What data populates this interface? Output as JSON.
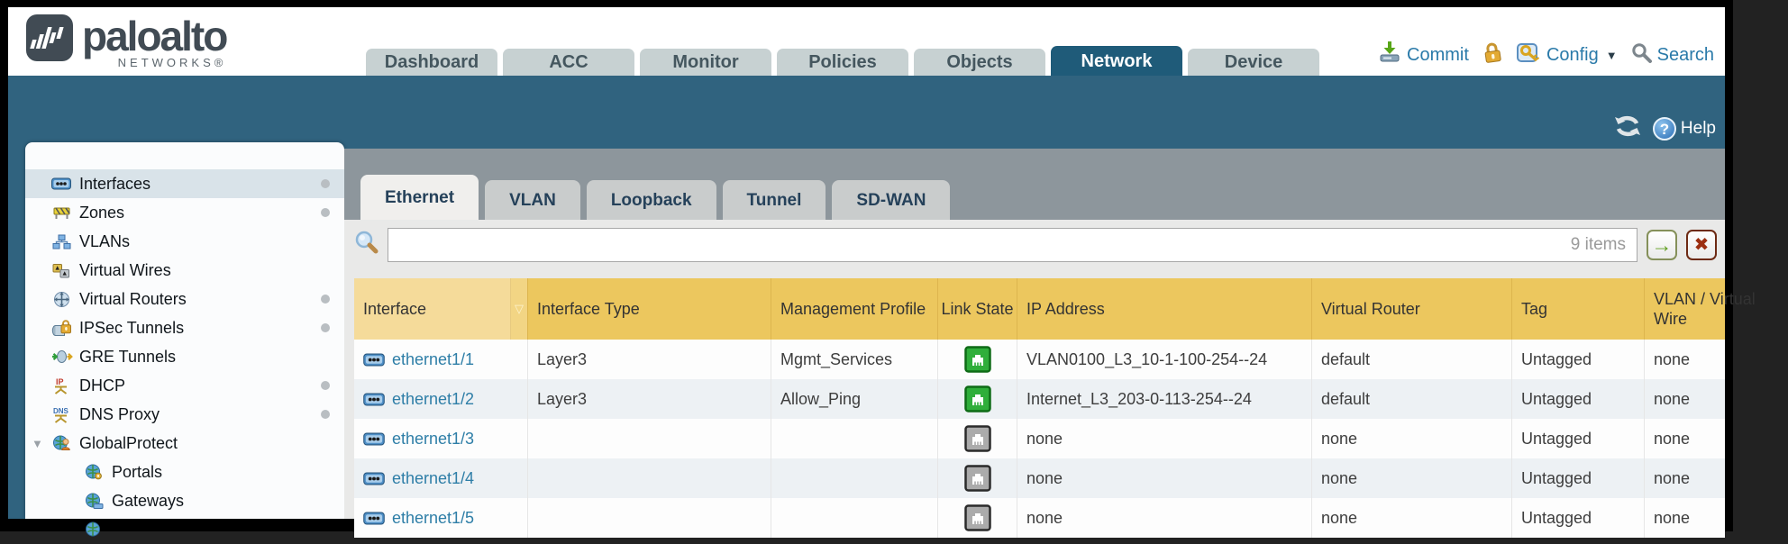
{
  "brand": {
    "name": "paloalto",
    "subname": "NETWORKS®"
  },
  "colors": {
    "accent_teal": "#30637f",
    "active_tab": "#1f5b79",
    "header_gold": "#ecc75e",
    "link_blue": "#2e7ea7",
    "status_up_green": "#2fae3a",
    "status_up_border": "#0e6b16",
    "status_down_gray": "#ababab",
    "status_down_border": "#2a2a2a"
  },
  "nav": {
    "tabs": [
      {
        "label": "Dashboard",
        "active": false
      },
      {
        "label": "ACC",
        "active": false
      },
      {
        "label": "Monitor",
        "active": false
      },
      {
        "label": "Policies",
        "active": false
      },
      {
        "label": "Objects",
        "active": false
      },
      {
        "label": "Network",
        "active": true
      },
      {
        "label": "Device",
        "active": false
      }
    ],
    "actions": [
      {
        "id": "commit",
        "label": "Commit",
        "icon": "commit-icon",
        "caret": false
      },
      {
        "id": "lock",
        "label": "",
        "icon": "lock-icon",
        "caret": false
      },
      {
        "id": "config",
        "label": "Config",
        "icon": "config-icon",
        "caret": true
      },
      {
        "id": "search",
        "label": "Search",
        "icon": "search-icon",
        "caret": false
      }
    ]
  },
  "statusbar": {
    "help_label": "Help"
  },
  "sidebar": {
    "items": [
      {
        "label": "Interfaces",
        "icon": "interfaces-icon",
        "selected": true,
        "dot": true,
        "expander": false,
        "child": false
      },
      {
        "label": "Zones",
        "icon": "zones-icon",
        "selected": false,
        "dot": true,
        "expander": false,
        "child": false
      },
      {
        "label": "VLANs",
        "icon": "vlans-icon",
        "selected": false,
        "dot": false,
        "expander": false,
        "child": false
      },
      {
        "label": "Virtual Wires",
        "icon": "virtual-wires-icon",
        "selected": false,
        "dot": false,
        "expander": false,
        "child": false
      },
      {
        "label": "Virtual Routers",
        "icon": "virtual-routers-icon",
        "selected": false,
        "dot": true,
        "expander": false,
        "child": false
      },
      {
        "label": "IPSec Tunnels",
        "icon": "ipsec-tunnels-icon",
        "selected": false,
        "dot": true,
        "expander": false,
        "child": false
      },
      {
        "label": "GRE Tunnels",
        "icon": "gre-tunnels-icon",
        "selected": false,
        "dot": false,
        "expander": false,
        "child": false
      },
      {
        "label": "DHCP",
        "icon": "dhcp-icon",
        "selected": false,
        "dot": true,
        "expander": false,
        "child": false
      },
      {
        "label": "DNS Proxy",
        "icon": "dns-proxy-icon",
        "selected": false,
        "dot": true,
        "expander": false,
        "child": false
      },
      {
        "label": "GlobalProtect",
        "icon": "globalprotect-icon",
        "selected": false,
        "dot": false,
        "expander": true,
        "child": false
      },
      {
        "label": "Portals",
        "icon": "portals-icon",
        "selected": false,
        "dot": false,
        "expander": false,
        "child": true
      },
      {
        "label": "Gateways",
        "icon": "gateways-icon",
        "selected": false,
        "dot": false,
        "expander": false,
        "child": true
      },
      {
        "label": "",
        "icon": "globe-icon",
        "selected": false,
        "dot": false,
        "expander": false,
        "child": true
      }
    ]
  },
  "content": {
    "tabs": [
      {
        "label": "Ethernet",
        "active": true
      },
      {
        "label": "VLAN",
        "active": false
      },
      {
        "label": "Loopback",
        "active": false
      },
      {
        "label": "Tunnel",
        "active": false
      },
      {
        "label": "SD-WAN",
        "active": false
      }
    ],
    "search": {
      "value": "",
      "items_count": "9 items"
    },
    "table": {
      "columns": [
        {
          "id": "interface",
          "label": "Interface",
          "sortable": true
        },
        {
          "id": "type",
          "label": "Interface Type"
        },
        {
          "id": "mgmt",
          "label": "Management Profile"
        },
        {
          "id": "link",
          "label": "Link State"
        },
        {
          "id": "ip",
          "label": "IP Address"
        },
        {
          "id": "vr",
          "label": "Virtual Router"
        },
        {
          "id": "tag",
          "label": "Tag"
        },
        {
          "id": "vlan",
          "label": "VLAN / Virtual Wire"
        }
      ],
      "rows": [
        {
          "interface": "ethernet1/1",
          "type": "Layer3",
          "mgmt": "Mgmt_Services",
          "link": "up",
          "ip": "VLAN0100_L3_10-1-100-254--24",
          "vr": "default",
          "tag": "Untagged",
          "vlan": "none"
        },
        {
          "interface": "ethernet1/2",
          "type": "Layer3",
          "mgmt": "Allow_Ping",
          "link": "up",
          "ip": "Internet_L3_203-0-113-254--24",
          "vr": "default",
          "tag": "Untagged",
          "vlan": "none"
        },
        {
          "interface": "ethernet1/3",
          "type": "",
          "mgmt": "",
          "link": "down",
          "ip": "none",
          "vr": "none",
          "tag": "Untagged",
          "vlan": "none"
        },
        {
          "interface": "ethernet1/4",
          "type": "",
          "mgmt": "",
          "link": "down",
          "ip": "none",
          "vr": "none",
          "tag": "Untagged",
          "vlan": "none"
        },
        {
          "interface": "ethernet1/5",
          "type": "",
          "mgmt": "",
          "link": "down",
          "ip": "none",
          "vr": "none",
          "tag": "Untagged",
          "vlan": "none"
        }
      ]
    }
  }
}
